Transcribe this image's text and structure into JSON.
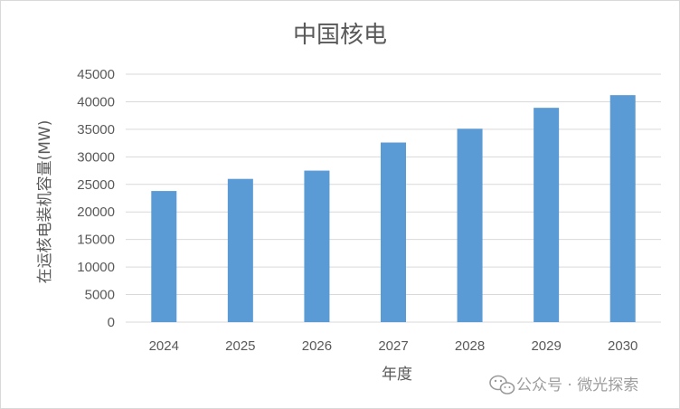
{
  "chart_data": {
    "type": "bar",
    "title": "中国核电",
    "xlabel": "年度",
    "ylabel": "在运核电装机容量(MW)",
    "categories": [
      "2024",
      "2025",
      "2026",
      "2027",
      "2028",
      "2029",
      "2030"
    ],
    "values": [
      23800,
      26000,
      27500,
      32600,
      35100,
      38900,
      41200
    ],
    "ylim": [
      0,
      45000
    ],
    "yticks": [
      0,
      5000,
      10000,
      15000,
      20000,
      25000,
      30000,
      35000,
      40000,
      45000
    ],
    "ytick_labels": [
      "0",
      "5000",
      "10000",
      "15000",
      "20000",
      "25000",
      "30000",
      "35000",
      "40000",
      "45000"
    ],
    "grid": true,
    "bar_color": "#5b9bd5",
    "grid_color": "#d9d9d9"
  },
  "watermark": {
    "text": "公众号 · 微光探索",
    "icon": "wechat-icon"
  }
}
